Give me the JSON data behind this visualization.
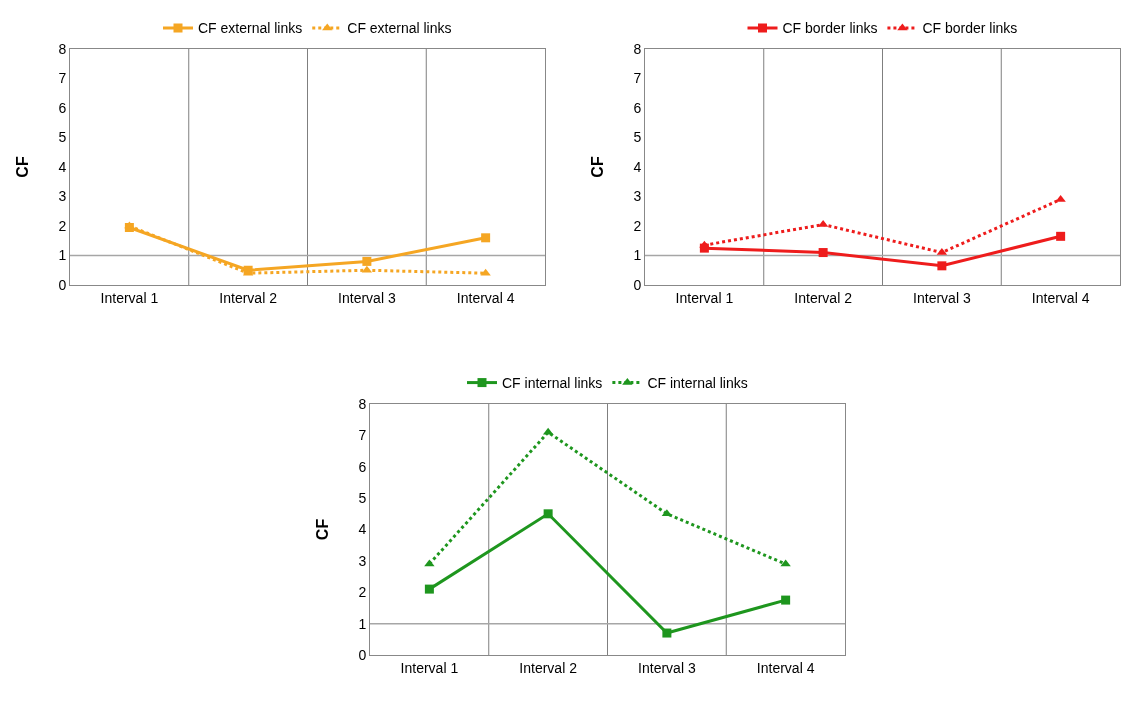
{
  "chart_data": [
    {
      "type": "line",
      "ylabel": "CF",
      "categories": [
        "Interval 1",
        "Interval 2",
        "Interval 3",
        "Interval 4"
      ],
      "ylim": [
        0,
        8
      ],
      "yticks": [
        0,
        1,
        2,
        3,
        4,
        5,
        6,
        7,
        8
      ],
      "grid": "x",
      "legend": "top",
      "ref_lines": [
        {
          "axis": "y",
          "value": 1,
          "color": "#a6a6a6"
        }
      ],
      "series": [
        {
          "name": "CF external links",
          "color": "#f5a623",
          "marker": "square",
          "line_style": "solid",
          "values": [
            1.95,
            0.5,
            0.8,
            1.6
          ]
        },
        {
          "name": "CF external links",
          "color": "#f5a623",
          "marker": "triangle",
          "line_style": "dotted",
          "values": [
            2.0,
            0.4,
            0.5,
            0.4
          ]
        }
      ]
    },
    {
      "type": "line",
      "ylabel": "CF",
      "categories": [
        "Interval 1",
        "Interval 2",
        "Interval 3",
        "Interval 4"
      ],
      "ylim": [
        0,
        8
      ],
      "yticks": [
        0,
        1,
        2,
        3,
        4,
        5,
        6,
        7,
        8
      ],
      "grid": "x",
      "legend": "top",
      "ref_lines": [
        {
          "axis": "y",
          "value": 1,
          "color": "#a6a6a6"
        }
      ],
      "series": [
        {
          "name": "CF border links",
          "color": "#ee1c1c",
          "marker": "square",
          "line_style": "solid",
          "values": [
            1.25,
            1.1,
            0.65,
            1.65
          ]
        },
        {
          "name": "CF border links",
          "color": "#ee1c1c",
          "marker": "triangle",
          "line_style": "dotted",
          "values": [
            1.35,
            2.05,
            1.1,
            2.9
          ]
        }
      ]
    },
    {
      "type": "line",
      "ylabel": "CF",
      "categories": [
        "Interval 1",
        "Interval 2",
        "Interval 3",
        "Interval 4"
      ],
      "ylim": [
        0,
        8
      ],
      "yticks": [
        0,
        1,
        2,
        3,
        4,
        5,
        6,
        7,
        8
      ],
      "grid": "x",
      "legend": "top",
      "ref_lines": [
        {
          "axis": "y",
          "value": 1,
          "color": "#a6a6a6"
        }
      ],
      "series": [
        {
          "name": "CF internal links",
          "color": "#1e961e",
          "marker": "square",
          "line_style": "solid",
          "values": [
            2.1,
            4.5,
            0.7,
            1.75
          ]
        },
        {
          "name": "CF internal links",
          "color": "#1e961e",
          "marker": "triangle",
          "line_style": "dotted",
          "values": [
            2.9,
            7.1,
            4.5,
            2.9
          ]
        }
      ]
    }
  ]
}
